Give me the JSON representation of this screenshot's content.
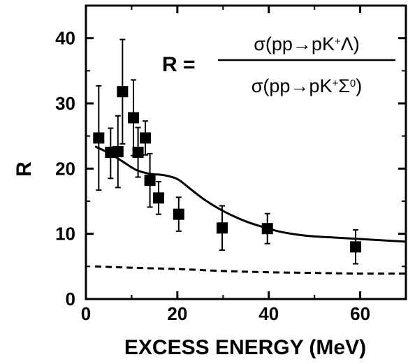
{
  "chart_data": {
    "type": "scatter",
    "title": "",
    "xlabel": "EXCESS ENERGY (MeV)",
    "ylabel": "R",
    "xlim": [
      0,
      70
    ],
    "ylim": [
      0,
      45
    ],
    "x_ticks": [
      "0",
      "20",
      "40",
      "60"
    ],
    "y_ticks": [
      "0",
      "10",
      "20",
      "30",
      "40"
    ],
    "grid": false,
    "annotation": {
      "lhs": "R =",
      "numerator": "σ(pp→pK⁺Λ)",
      "denominator": "σ(pp→pK⁺Σ⁰)"
    },
    "points": [
      {
        "x": 2.8,
        "y": 24.7,
        "err_low": 8.0,
        "err_high": 8.0
      },
      {
        "x": 5.4,
        "y": 22.5,
        "err_low": 4.0,
        "err_high": 3.7
      },
      {
        "x": 7.0,
        "y": 22.6,
        "err_low": 5.5,
        "err_high": 5.5
      },
      {
        "x": 8.0,
        "y": 31.8,
        "err_low": 8.0,
        "err_high": 8.0
      },
      {
        "x": 10.4,
        "y": 27.8,
        "err_low": 5.8,
        "err_high": 5.8
      },
      {
        "x": 11.4,
        "y": 22.5,
        "err_low": 3.8,
        "err_high": 3.8
      },
      {
        "x": 13.0,
        "y": 24.7,
        "err_low": 2.6,
        "err_high": 2.6
      },
      {
        "x": 14.0,
        "y": 18.2,
        "err_low": 4.1,
        "err_high": 4.1
      },
      {
        "x": 15.9,
        "y": 15.5,
        "err_low": 2.5,
        "err_high": 2.5
      },
      {
        "x": 20.3,
        "y": 13.0,
        "err_low": 2.6,
        "err_high": 2.6
      },
      {
        "x": 29.8,
        "y": 10.9,
        "err_low": 3.4,
        "err_high": 3.4
      },
      {
        "x": 39.7,
        "y": 10.8,
        "err_low": 2.3,
        "err_high": 2.3
      },
      {
        "x": 59.0,
        "y": 8.0,
        "err_low": 2.6,
        "err_high": 2.6
      }
    ],
    "curves": [
      {
        "style": "solid",
        "x": [
          2,
          5,
          8,
          11,
          14,
          17,
          20,
          23,
          26,
          29,
          32,
          35,
          38,
          42,
          46,
          50,
          55,
          60,
          65,
          70
        ],
        "y": [
          23.4,
          22.4,
          21.1,
          19.8,
          19.2,
          19.0,
          18.4,
          16.8,
          15.2,
          13.9,
          12.8,
          11.9,
          11.2,
          10.4,
          9.9,
          9.6,
          9.4,
          9.2,
          9.0,
          8.8
        ]
      },
      {
        "style": "dashed",
        "x": [
          2,
          10,
          20,
          30,
          40,
          50,
          60,
          70
        ],
        "y": [
          5.0,
          4.8,
          4.6,
          4.3,
          4.1,
          4.0,
          3.9,
          3.9
        ]
      }
    ]
  }
}
